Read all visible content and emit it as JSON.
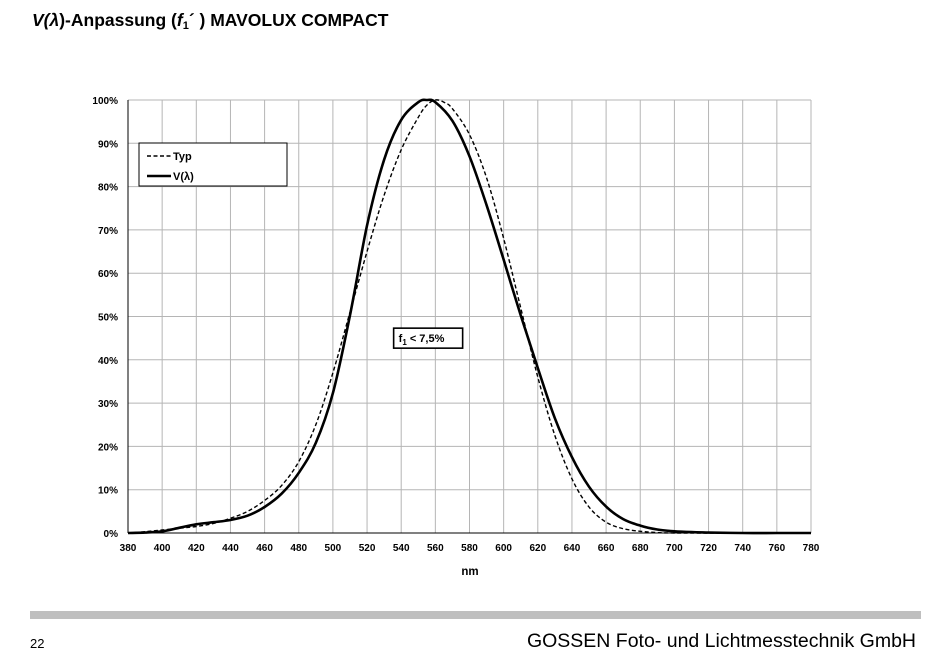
{
  "title": {
    "v": "V(",
    "lambda": "λ",
    "mid": ")-Anpassung (",
    "f": "f",
    "sub": "1",
    "suffix": "´ ) MAVOLUX COMPACT"
  },
  "footer": {
    "page_number": "22",
    "company": "GOSSEN Foto- und Lichtmesstechnik GmbH"
  },
  "chart_data": {
    "type": "line",
    "title": "",
    "xlabel": "nm",
    "ylabel": "",
    "xlim": [
      380,
      780
    ],
    "ylim": [
      0,
      100
    ],
    "x_ticks": [
      380,
      400,
      420,
      440,
      460,
      480,
      500,
      520,
      540,
      560,
      580,
      600,
      620,
      640,
      660,
      680,
      700,
      720,
      740,
      760,
      780
    ],
    "y_ticks": [
      "0%",
      "10%",
      "20%",
      "30%",
      "40%",
      "50%",
      "60%",
      "70%",
      "80%",
      "90%",
      "100%"
    ],
    "grid": true,
    "legend_position": "top-left",
    "annotation": {
      "f": "f",
      "sub": "1",
      "text": " < 7,5%",
      "x": 559,
      "y": 45
    },
    "series": [
      {
        "name": "Typ",
        "style": "dashed",
        "x": [
          380,
          390,
          400,
          410,
          420,
          430,
          440,
          450,
          460,
          470,
          480,
          490,
          500,
          510,
          520,
          530,
          540,
          550,
          555,
          560,
          565,
          570,
          580,
          590,
          600,
          610,
          620,
          630,
          640,
          650,
          660,
          670,
          680,
          690,
          700,
          720,
          740,
          760,
          780
        ],
        "y": [
          0.0,
          0.3,
          0.7,
          1.1,
          1.5,
          2.2,
          3.4,
          5.0,
          7.5,
          11.0,
          16.5,
          25.0,
          37.0,
          51.0,
          65.0,
          78.0,
          88.5,
          96.0,
          98.8,
          100.0,
          99.5,
          98.0,
          92.0,
          82.0,
          68.0,
          52.0,
          36.0,
          22.5,
          12.5,
          6.0,
          2.5,
          1.0,
          0.4,
          0.1,
          0.0,
          0.0,
          0.0,
          0.0,
          0.0
        ]
      },
      {
        "name": "V(λ)",
        "style": "solid",
        "x": [
          380,
          390,
          400,
          410,
          420,
          430,
          440,
          450,
          460,
          470,
          480,
          490,
          500,
          510,
          520,
          530,
          540,
          550,
          555,
          560,
          570,
          580,
          590,
          600,
          610,
          620,
          630,
          640,
          650,
          660,
          670,
          680,
          690,
          700,
          710,
          720,
          740,
          760,
          780
        ],
        "y": [
          0.0,
          0.1,
          0.4,
          1.2,
          2.0,
          2.5,
          3.0,
          4.0,
          6.0,
          9.1,
          13.9,
          20.8,
          32.3,
          50.3,
          71.0,
          86.2,
          95.4,
          99.5,
          100.0,
          99.5,
          95.2,
          87.0,
          75.7,
          63.1,
          50.3,
          38.1,
          26.5,
          17.5,
          10.7,
          6.1,
          3.2,
          1.7,
          0.8,
          0.4,
          0.2,
          0.1,
          0.0,
          0.0,
          0.0
        ]
      }
    ]
  }
}
